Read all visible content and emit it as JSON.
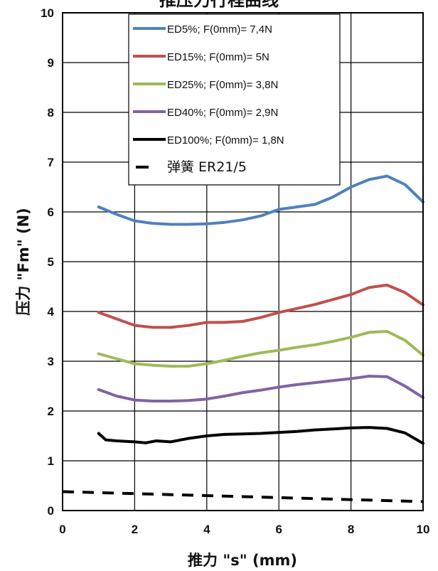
{
  "chart_data": {
    "type": "line",
    "title": "推压力行程曲线",
    "xlabel": "推力 \"s\" (mm)",
    "ylabel": "压力 \"Fm\" (N)",
    "xlim": [
      0,
      10
    ],
    "ylim": [
      0,
      10
    ],
    "xticks": [
      "0",
      "2",
      "4",
      "6",
      "8",
      "10"
    ],
    "yticks": [
      "0",
      "1",
      "2",
      "3",
      "4",
      "5",
      "6",
      "7",
      "8",
      "9",
      "10"
    ],
    "grid": true,
    "legend_position": "top-center",
    "series": [
      {
        "name": "ED5%; F(0mm)= 7,4N",
        "color": "#4f81bd",
        "style": "solid",
        "x": [
          1,
          1.5,
          2,
          2.5,
          3,
          3.5,
          4,
          4.5,
          5,
          5.5,
          6,
          6.5,
          7,
          7.5,
          8,
          8.5,
          9,
          9.5,
          10
        ],
        "y": [
          6.1,
          5.95,
          5.82,
          5.77,
          5.75,
          5.75,
          5.76,
          5.79,
          5.84,
          5.92,
          6.05,
          6.1,
          6.15,
          6.3,
          6.5,
          6.65,
          6.72,
          6.55,
          6.2
        ]
      },
      {
        "name": "ED15%; F(0mm)= 5N",
        "color": "#c0504d",
        "style": "solid",
        "x": [
          1,
          1.5,
          2,
          2.5,
          3,
          3.5,
          4,
          4.5,
          5,
          5.5,
          6,
          6.5,
          7,
          7.5,
          8,
          8.5,
          9,
          9.5,
          10
        ],
        "y": [
          3.98,
          3.85,
          3.72,
          3.68,
          3.68,
          3.72,
          3.78,
          3.78,
          3.8,
          3.88,
          3.98,
          4.06,
          4.14,
          4.24,
          4.34,
          4.48,
          4.53,
          4.38,
          4.13
        ]
      },
      {
        "name": "ED25%; F(0mm)= 3,8N",
        "color": "#9bbb59",
        "style": "solid",
        "x": [
          1,
          1.5,
          2,
          2.5,
          3,
          3.5,
          4,
          4.5,
          5,
          5.5,
          6,
          6.5,
          7,
          7.5,
          8,
          8.5,
          9,
          9.5,
          10
        ],
        "y": [
          3.15,
          3.05,
          2.95,
          2.92,
          2.9,
          2.9,
          2.95,
          3.02,
          3.1,
          3.17,
          3.22,
          3.28,
          3.33,
          3.4,
          3.48,
          3.58,
          3.6,
          3.42,
          3.12
        ]
      },
      {
        "name": "ED40%; F(0mm)= 2,9N",
        "color": "#8064a2",
        "style": "solid",
        "x": [
          1,
          1.5,
          2,
          2.5,
          3,
          3.5,
          4,
          4.5,
          5,
          5.5,
          6,
          6.5,
          7,
          7.5,
          8,
          8.5,
          9,
          9.5,
          10
        ],
        "y": [
          2.43,
          2.3,
          2.22,
          2.2,
          2.2,
          2.21,
          2.24,
          2.3,
          2.37,
          2.42,
          2.48,
          2.53,
          2.57,
          2.61,
          2.65,
          2.7,
          2.69,
          2.5,
          2.27
        ]
      },
      {
        "name": "ED100%; F(0mm)= 1,8N",
        "color": "#000000",
        "style": "solid",
        "x": [
          1,
          1.2,
          1.5,
          2,
          2.3,
          2.6,
          3,
          3.5,
          4,
          4.5,
          5,
          5.5,
          6,
          6.5,
          7,
          7.5,
          8,
          8.5,
          9,
          9.5,
          10
        ],
        "y": [
          1.55,
          1.42,
          1.4,
          1.38,
          1.36,
          1.4,
          1.38,
          1.45,
          1.5,
          1.53,
          1.54,
          1.55,
          1.57,
          1.59,
          1.62,
          1.64,
          1.66,
          1.67,
          1.65,
          1.56,
          1.35
        ]
      },
      {
        "name": "弹簧 ER21/5",
        "color": "#000000",
        "style": "dashed",
        "x": [
          0,
          2,
          4,
          6,
          8,
          10
        ],
        "y": [
          0.38,
          0.34,
          0.3,
          0.26,
          0.22,
          0.18
        ]
      }
    ]
  }
}
